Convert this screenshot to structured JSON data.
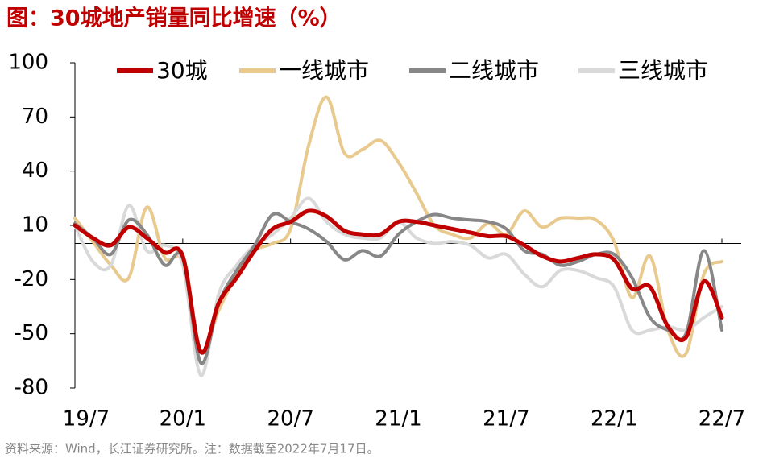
{
  "chart_data": {
    "type": "line",
    "title": "图：30城地产销量同比增速（%）",
    "source": "资料来源：Wind，长江证券研究所。注：数据截至2022年7月17日。",
    "categories": [
      "19/7",
      null,
      null,
      null,
      null,
      null,
      "20/1",
      null,
      null,
      null,
      null,
      null,
      "20/7",
      null,
      null,
      null,
      null,
      null,
      "21/1",
      null,
      null,
      null,
      null,
      null,
      "21/7",
      null,
      null,
      null,
      null,
      null,
      "22/1",
      null,
      null,
      null,
      null,
      null,
      "22/7"
    ],
    "series": [
      {
        "name": "一线城市",
        "color": "#e8c98e",
        "values": [
          14,
          1,
          -12,
          -19,
          20,
          -8,
          -10,
          -59,
          -37,
          -17,
          -4,
          0,
          8,
          54,
          81,
          50,
          52,
          57,
          45,
          28,
          10,
          5,
          3,
          11,
          5,
          18,
          9,
          14,
          14,
          13,
          1,
          -30,
          -7,
          -48,
          -61,
          -17,
          -10
        ]
      },
      {
        "name": "三线城市",
        "color": "#d9d9d9",
        "values": [
          10,
          -10,
          -12,
          21,
          -4,
          -1,
          -12,
          -73,
          -28,
          -12,
          -1,
          5,
          14,
          25,
          12,
          5,
          3,
          3,
          12,
          3,
          0,
          1,
          -1,
          -8,
          -6,
          -17,
          -24,
          -15,
          -15,
          -19,
          -24,
          -48,
          -48,
          -46,
          -48,
          -41,
          -35
        ]
      },
      {
        "name": "二线城市",
        "color": "#878787",
        "values": [
          11,
          3,
          -6,
          13,
          5,
          -12,
          -8,
          -66,
          -33,
          -15,
          -1,
          16,
          12,
          8,
          1,
          -9,
          -4,
          -7,
          5,
          12,
          16,
          14,
          13,
          12,
          8,
          -4,
          -6,
          -12,
          -10,
          -6,
          -6,
          -19,
          -41,
          -48,
          -50,
          -4,
          -48
        ]
      },
      {
        "name": "30城",
        "color": "#c00000",
        "values": [
          10,
          3,
          -1,
          9,
          3,
          -5,
          -7,
          -60,
          -33,
          -19,
          -4,
          8,
          12,
          18,
          15,
          7,
          5,
          5,
          12,
          12,
          10,
          8,
          6,
          4,
          4,
          -1,
          -7,
          -10,
          -8,
          -6,
          -9,
          -25,
          -24,
          -46,
          -52,
          -21,
          -41
        ]
      }
    ],
    "legend_order": [
      "30城",
      "一线城市",
      "二线城市",
      "三线城市"
    ],
    "ylim": [
      -80,
      100
    ],
    "yticks": [
      -80,
      -50,
      -20,
      10,
      40,
      70,
      100
    ]
  }
}
